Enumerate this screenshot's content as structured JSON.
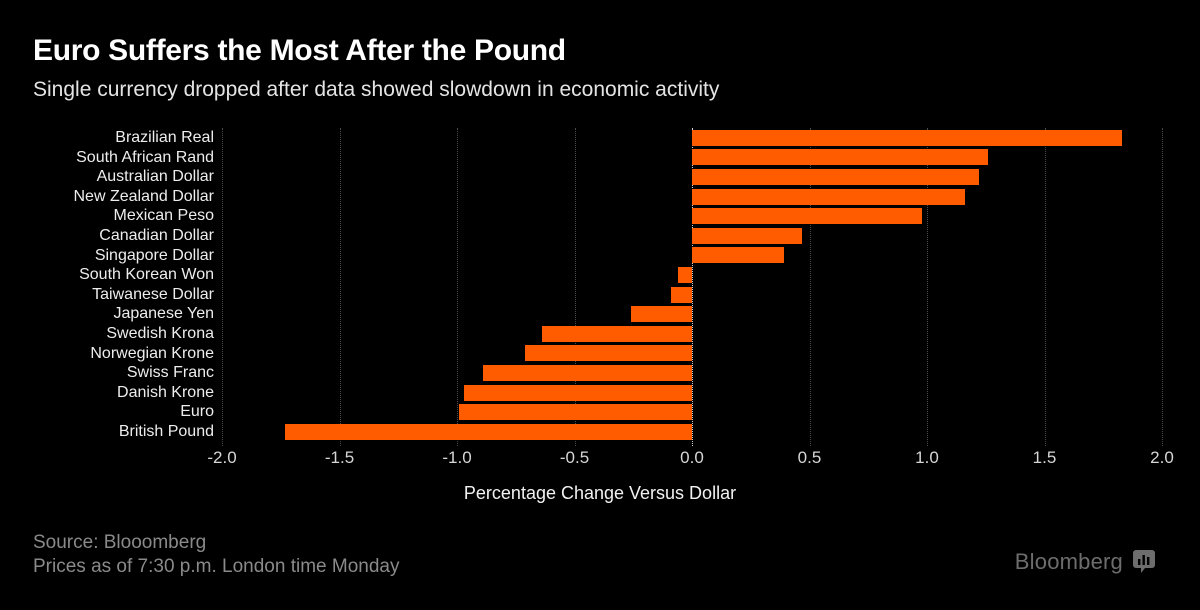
{
  "chart_data": {
    "type": "bar",
    "orientation": "horizontal",
    "title": "Euro Suffers the Most After the Pound",
    "subtitle": "Single currency dropped after data showed slowdown in economic activity",
    "categories": [
      "Brazilian Real",
      "South African Rand",
      "Australian Dollar",
      "New Zealand Dollar",
      "Mexican Peso",
      "Canadian Dollar",
      "Singapore Dollar",
      "South Korean Won",
      "Taiwanese Dollar",
      "Japanese Yen",
      "Swedish Krona",
      "Norwegian Krone",
      "Swiss Franc",
      "Danish Krone",
      "Euro",
      "British Pound"
    ],
    "values": [
      1.83,
      1.26,
      1.22,
      1.16,
      0.98,
      0.47,
      0.39,
      -0.06,
      -0.09,
      -0.26,
      -0.64,
      -0.71,
      -0.89,
      -0.97,
      -0.99,
      -1.73
    ],
    "xlabel": "Percentage Change Versus Dollar",
    "ylabel": "",
    "xlim": [
      -2.0,
      2.0
    ],
    "xticks": [
      -2.0,
      -1.5,
      -1.0,
      -0.5,
      0.0,
      0.5,
      1.0,
      1.5,
      2.0
    ],
    "xtick_labels": [
      "-2.0",
      "-1.5",
      "-1.0",
      "-0.5",
      "0.0",
      "0.5",
      "1.0",
      "1.5",
      "2.0"
    ],
    "grid": "vertical-dotted",
    "legend": "none",
    "colors": {
      "bar": "#ff5c00",
      "background": "#000000",
      "gridline": "#4b4b4b",
      "zero_line": "#cfcfcf"
    }
  },
  "footer": {
    "source": "Source: Blooomberg",
    "note": "Prices as of 7:30 p.m. London time Monday",
    "brand": "Bloomberg",
    "brand_icon": "bloomberg-terminal-icon"
  }
}
